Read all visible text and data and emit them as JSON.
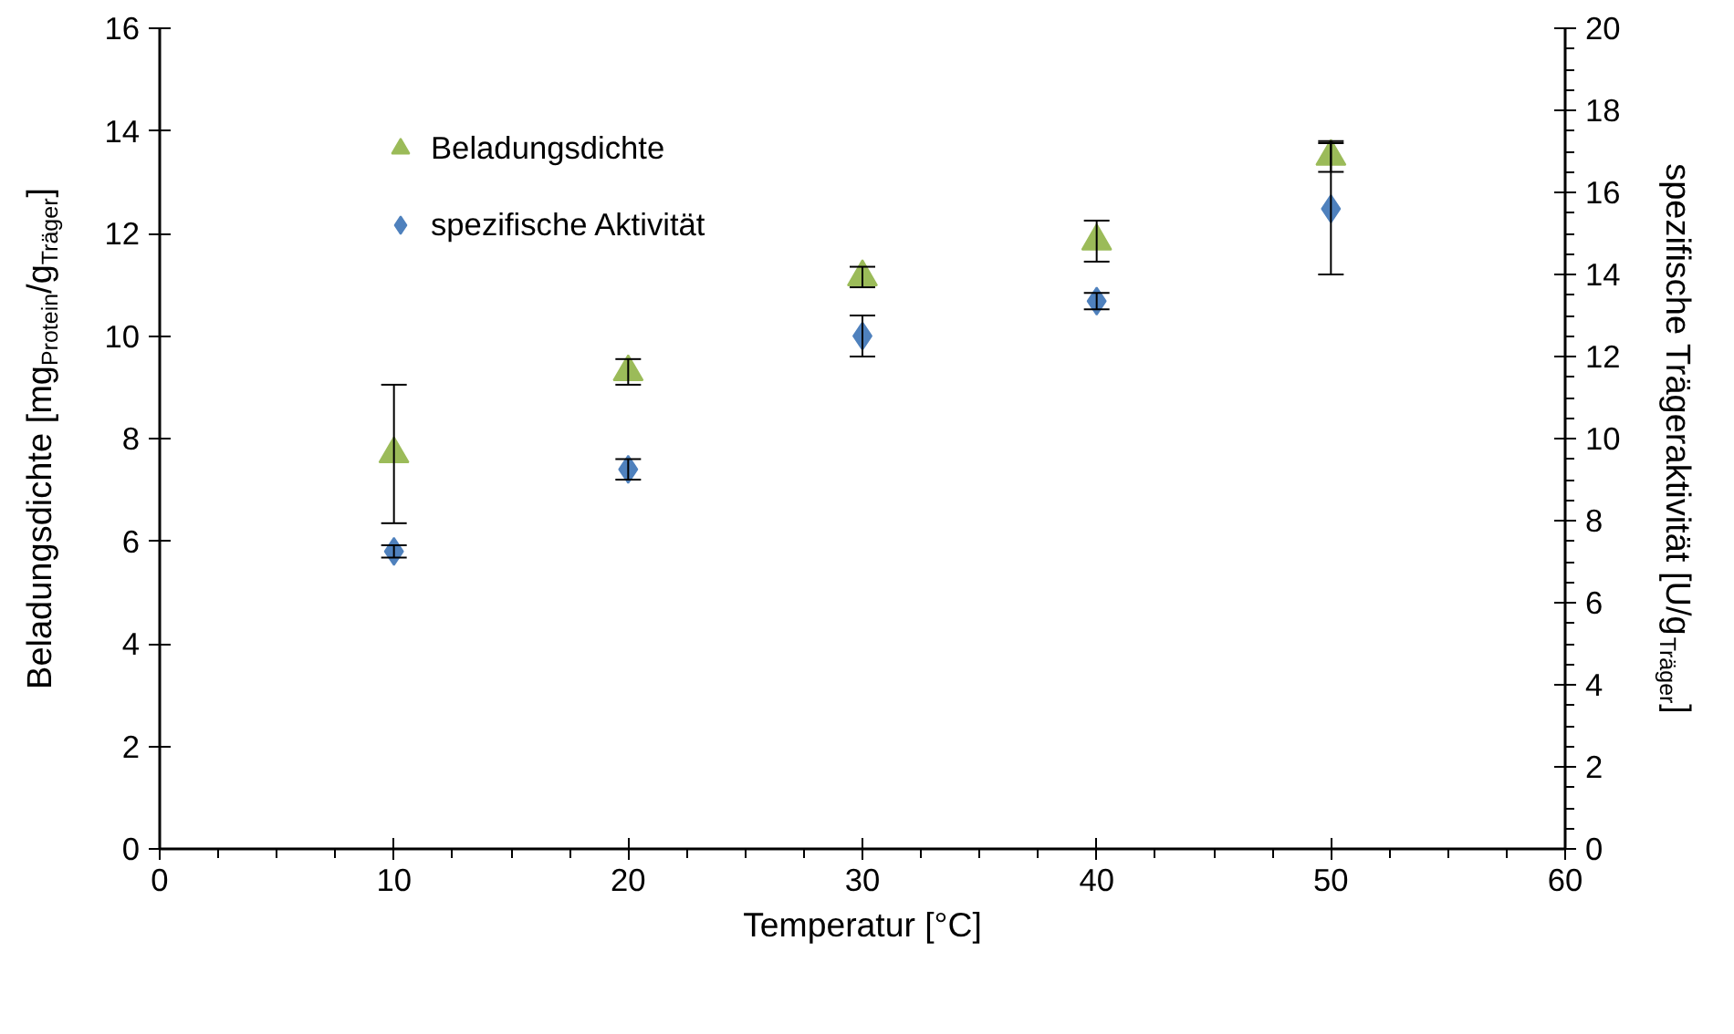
{
  "chart_data": {
    "type": "scatter",
    "xlabel": "Temperatur [°C]",
    "ylabel": "Beladungsdichte [mg$_{Protein}$/g$_{Träger}$]",
    "y2label": "spezifische Trägeraktivität [U/g$_{Träger}$]",
    "x": [
      10,
      20,
      30,
      40,
      50
    ],
    "series": [
      {
        "name": "Beladungsdichte",
        "color": "#9bbb59",
        "marker": "triangle",
        "values": [
          7.7,
          9.3,
          11.15,
          11.85,
          13.5
        ],
        "errors": [
          1.35,
          0.25,
          0.2,
          0.4,
          0.3
        ]
      },
      {
        "name": "spezifische Aktivität",
        "color": "#4f81bd",
        "marker": "diamond",
        "axis": "y2",
        "values": [
          7.25,
          9.25,
          12.5,
          13.35,
          15.6
        ],
        "errors": [
          0.15,
          0.25,
          0.5,
          0.2,
          1.6
        ]
      }
    ],
    "xlim": [
      0,
      60
    ],
    "xticks": [
      0,
      10,
      20,
      30,
      40,
      50,
      60
    ],
    "ylim": [
      0,
      16
    ],
    "yticks": [
      0,
      2,
      4,
      6,
      8,
      10,
      12,
      14,
      16
    ],
    "y2lim": [
      0,
      20
    ],
    "y2ticks": [
      0,
      2,
      4,
      6,
      8,
      10,
      12,
      14,
      16,
      18,
      20
    ],
    "grid": false,
    "legend": "top left"
  }
}
